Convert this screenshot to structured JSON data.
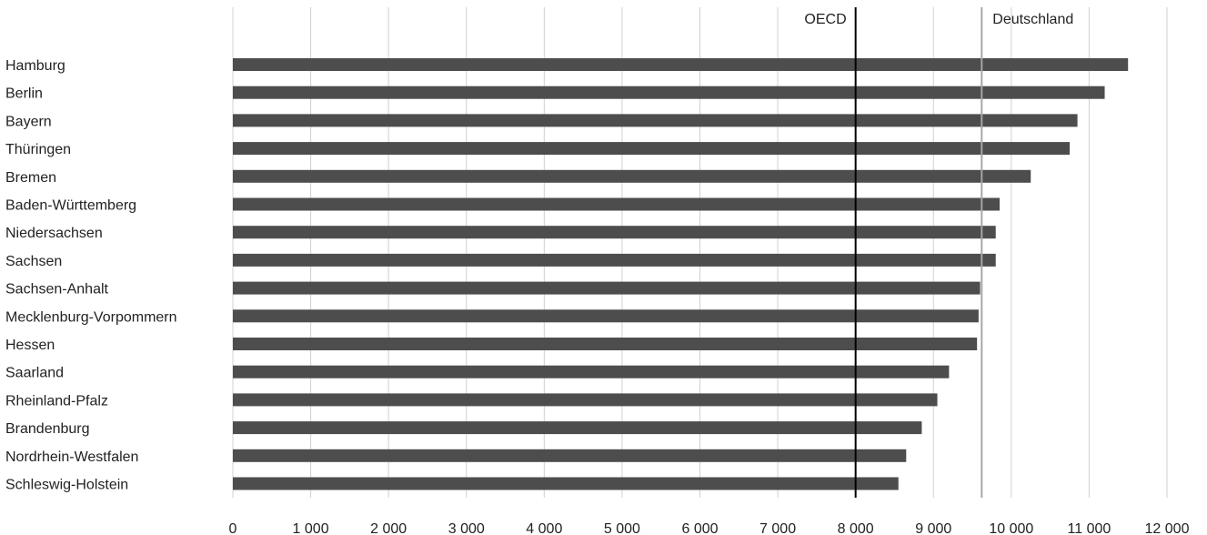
{
  "chart_data": {
    "type": "bar",
    "orientation": "horizontal",
    "title": "",
    "xlabel": "",
    "ylabel": "",
    "xlim": [
      0,
      12000
    ],
    "ticks": [
      0,
      1000,
      2000,
      3000,
      4000,
      5000,
      6000,
      7000,
      8000,
      9000,
      10000,
      11000,
      12000
    ],
    "tick_labels": [
      "0",
      "1 000",
      "2 000",
      "3 000",
      "4 000",
      "5 000",
      "6 000",
      "7 000",
      "8 000",
      "9 000",
      "10 000",
      "11 000",
      "12 000"
    ],
    "grid": true,
    "categories": [
      "Hamburg",
      "Berlin",
      "Bayern",
      "Thüringen",
      "Bremen",
      "Baden-Württemberg",
      "Niedersachsen",
      "Sachsen",
      "Sachsen-Anhalt",
      "Mecklenburg-Vorpommern",
      "Hessen",
      "Saarland",
      "Rheinland-Pfalz",
      "Brandenburg",
      "Nordrhein-Westfalen",
      "Schleswig-Holstein"
    ],
    "values": [
      11500,
      11200,
      10850,
      10750,
      10250,
      9850,
      9800,
      9800,
      9600,
      9580,
      9560,
      9200,
      9050,
      8850,
      8650,
      8550
    ],
    "bar_color": "#4d4d4d",
    "reference_lines": [
      {
        "label": "OECD",
        "value": 8000,
        "color": "#000000",
        "label_side": "left"
      },
      {
        "label": "Deutschland",
        "value": 9620,
        "color": "#a6a6a6",
        "label_side": "right"
      }
    ]
  }
}
